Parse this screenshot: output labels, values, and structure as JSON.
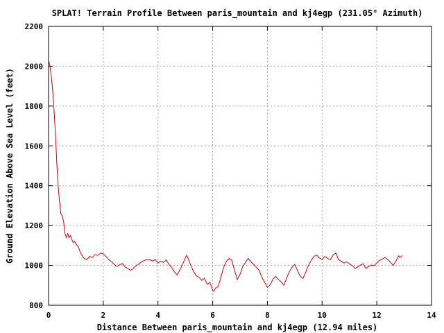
{
  "chart_data": {
    "type": "line",
    "title": "SPLAT! Terrain Profile Between paris_mountain and kj4egp (231.05° Azimuth)",
    "xlabel": "Distance Between paris_mountain and kj4egp (12.94 miles)",
    "ylabel": "Ground Elevation Above Sea Level (feet)",
    "xlim": [
      0,
      14
    ],
    "ylim": [
      800,
      2200
    ],
    "x_ticks": [
      0,
      2,
      4,
      6,
      8,
      10,
      12,
      14
    ],
    "y_ticks": [
      800,
      1000,
      1200,
      1400,
      1600,
      1800,
      2000,
      2200
    ],
    "grid": true,
    "series": [
      {
        "color": "#cc0000",
        "points": [
          [
            0.0,
            2030
          ],
          [
            0.05,
            2000
          ],
          [
            0.1,
            1950
          ],
          [
            0.15,
            1880
          ],
          [
            0.2,
            1780
          ],
          [
            0.25,
            1660
          ],
          [
            0.3,
            1520
          ],
          [
            0.35,
            1400
          ],
          [
            0.4,
            1320
          ],
          [
            0.45,
            1260
          ],
          [
            0.5,
            1250
          ],
          [
            0.55,
            1220
          ],
          [
            0.6,
            1160
          ],
          [
            0.65,
            1140
          ],
          [
            0.7,
            1160
          ],
          [
            0.75,
            1140
          ],
          [
            0.8,
            1150
          ],
          [
            0.85,
            1130
          ],
          [
            0.9,
            1115
          ],
          [
            0.95,
            1120
          ],
          [
            1.0,
            1110
          ],
          [
            1.05,
            1100
          ],
          [
            1.1,
            1090
          ],
          [
            1.15,
            1070
          ],
          [
            1.2,
            1055
          ],
          [
            1.3,
            1035
          ],
          [
            1.4,
            1030
          ],
          [
            1.5,
            1045
          ],
          [
            1.6,
            1040
          ],
          [
            1.7,
            1055
          ],
          [
            1.8,
            1050
          ],
          [
            1.9,
            1062
          ],
          [
            2.0,
            1058
          ],
          [
            2.1,
            1045
          ],
          [
            2.2,
            1030
          ],
          [
            2.3,
            1018
          ],
          [
            2.4,
            1005
          ],
          [
            2.5,
            995
          ],
          [
            2.6,
            1003
          ],
          [
            2.7,
            1010
          ],
          [
            2.8,
            992
          ],
          [
            2.9,
            985
          ],
          [
            3.0,
            975
          ],
          [
            3.1,
            985
          ],
          [
            3.2,
            998
          ],
          [
            3.3,
            1008
          ],
          [
            3.4,
            1018
          ],
          [
            3.5,
            1025
          ],
          [
            3.6,
            1030
          ],
          [
            3.7,
            1028
          ],
          [
            3.8,
            1022
          ],
          [
            3.9,
            1030
          ],
          [
            4.0,
            1012
          ],
          [
            4.1,
            1022
          ],
          [
            4.2,
            1015
          ],
          [
            4.3,
            1028
          ],
          [
            4.4,
            1005
          ],
          [
            4.5,
            990
          ],
          [
            4.6,
            968
          ],
          [
            4.7,
            952
          ],
          [
            4.8,
            978
          ],
          [
            4.9,
            1005
          ],
          [
            5.0,
            1038
          ],
          [
            5.05,
            1050
          ],
          [
            5.1,
            1035
          ],
          [
            5.2,
            1000
          ],
          [
            5.3,
            970
          ],
          [
            5.4,
            948
          ],
          [
            5.5,
            940
          ],
          [
            5.6,
            925
          ],
          [
            5.7,
            935
          ],
          [
            5.8,
            905
          ],
          [
            5.9,
            915
          ],
          [
            6.0,
            875
          ],
          [
            6.05,
            870
          ],
          [
            6.1,
            885
          ],
          [
            6.2,
            895
          ],
          [
            6.3,
            940
          ],
          [
            6.4,
            990
          ],
          [
            6.5,
            1020
          ],
          [
            6.6,
            1035
          ],
          [
            6.7,
            1025
          ],
          [
            6.8,
            975
          ],
          [
            6.9,
            930
          ],
          [
            7.0,
            955
          ],
          [
            7.1,
            995
          ],
          [
            7.2,
            1015
          ],
          [
            7.3,
            1035
          ],
          [
            7.4,
            1018
          ],
          [
            7.5,
            1005
          ],
          [
            7.6,
            990
          ],
          [
            7.7,
            975
          ],
          [
            7.8,
            940
          ],
          [
            7.9,
            915
          ],
          [
            8.0,
            890
          ],
          [
            8.1,
            902
          ],
          [
            8.2,
            930
          ],
          [
            8.3,
            945
          ],
          [
            8.4,
            930
          ],
          [
            8.5,
            918
          ],
          [
            8.6,
            900
          ],
          [
            8.7,
            935
          ],
          [
            8.8,
            968
          ],
          [
            8.9,
            990
          ],
          [
            9.0,
            1005
          ],
          [
            9.1,
            975
          ],
          [
            9.2,
            945
          ],
          [
            9.3,
            935
          ],
          [
            9.4,
            965
          ],
          [
            9.5,
            1000
          ],
          [
            9.6,
            1025
          ],
          [
            9.7,
            1045
          ],
          [
            9.8,
            1052
          ],
          [
            9.9,
            1038
          ],
          [
            10.0,
            1030
          ],
          [
            10.1,
            1045
          ],
          [
            10.2,
            1036
          ],
          [
            10.3,
            1028
          ],
          [
            10.4,
            1052
          ],
          [
            10.5,
            1062
          ],
          [
            10.6,
            1030
          ],
          [
            10.7,
            1020
          ],
          [
            10.8,
            1012
          ],
          [
            10.9,
            1018
          ],
          [
            11.0,
            1008
          ],
          [
            11.1,
            1000
          ],
          [
            11.2,
            985
          ],
          [
            11.3,
            992
          ],
          [
            11.4,
            1002
          ],
          [
            11.5,
            1008
          ],
          [
            11.6,
            985
          ],
          [
            11.7,
            995
          ],
          [
            11.8,
            1002
          ],
          [
            11.9,
            998
          ],
          [
            12.0,
            1012
          ],
          [
            12.1,
            1025
          ],
          [
            12.2,
            1032
          ],
          [
            12.3,
            1040
          ],
          [
            12.4,
            1030
          ],
          [
            12.5,
            1015
          ],
          [
            12.6,
            1000
          ],
          [
            12.7,
            1022
          ],
          [
            12.8,
            1048
          ],
          [
            12.85,
            1040
          ],
          [
            12.94,
            1050
          ]
        ]
      }
    ]
  }
}
